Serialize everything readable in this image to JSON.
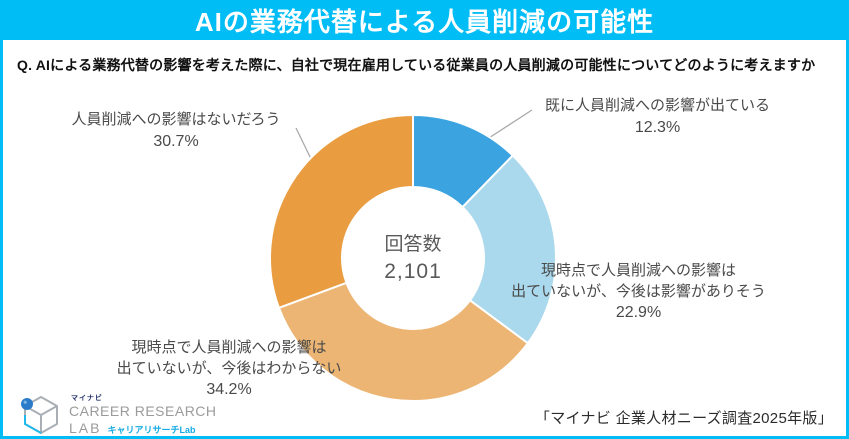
{
  "banner": {
    "title": "AIの業務代替による人員削減の可能性"
  },
  "question": {
    "text": "Q. AIによる業務代替の影響を考えた際に、自社で現在雇用している従業員の人員削減の可能性についてどのように考えますか"
  },
  "chart_data": {
    "type": "pie",
    "subtype": "donut",
    "title": "AIの業務代替による人員削減の可能性",
    "start_angle_deg": 0,
    "direction": "clockwise",
    "center": {
      "label": "回答数",
      "value": "2,101"
    },
    "total_responses": 2101,
    "slices": [
      {
        "label": "既に人員削減への影響が出ている",
        "value": 12.3,
        "percent_label": "12.3%",
        "color": "#3BA3DF"
      },
      {
        "label": "現時点で人員削減への影響は出ていないが、今後は影響がありそう",
        "value": 22.9,
        "percent_label": "22.9%",
        "color": "#AAD8EC"
      },
      {
        "label": "現時点で人員削減への影響は出ていないが、今後はわからない",
        "value": 34.2,
        "percent_label": "34.2%",
        "color": "#ECB573"
      },
      {
        "label": "人員削減への影響はないだろう",
        "value": 30.7,
        "percent_label": "30.7%",
        "color": "#E99C40"
      }
    ]
  },
  "callouts": {
    "already_affected": {
      "lines": [
        "既に人員削減への影響が出ている"
      ],
      "pct": "12.3%"
    },
    "likely_future": {
      "lines": [
        "現時点で人員削減への影響は",
        "出ていないが、今後は影響がありそう"
      ],
      "pct": "22.9%"
    },
    "unknown_future": {
      "lines": [
        "現時点で人員削減への影響は",
        "出ていないが、今後はわからない"
      ],
      "pct": "34.2%"
    },
    "no_impact": {
      "lines": [
        "人員削減への影響はないだろう"
      ],
      "pct": "30.7%"
    }
  },
  "footer": {
    "logo": {
      "brand": "マイナビ",
      "line1": "CAREER RESEARCH",
      "line2": "LAB",
      "sub": "キャリアリサーチLab"
    },
    "source": "「マイナビ 企業人材ニーズ調査2025年版」"
  },
  "colors": {
    "accent_cyan": "#00BDF6",
    "slice_blue": "#3BA3DF",
    "slice_light_blue": "#AAD8EC",
    "slice_tan": "#ECB573",
    "slice_orange": "#E99C40",
    "label_text": "#4A4A4A",
    "leader_line": "#AAAAAA"
  }
}
